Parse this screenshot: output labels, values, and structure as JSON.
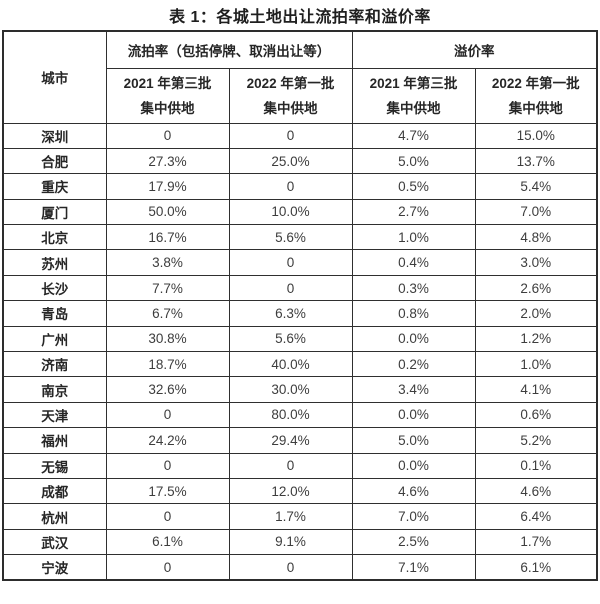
{
  "title": "表 1：各城土地出让流拍率和溢价率",
  "table": {
    "city_header": "城市",
    "group_headers": [
      "流拍率（包括停牌、取消出让等）",
      "溢价率"
    ],
    "sub_headers": [
      {
        "line1": "2021 年第三批",
        "line2": "集中供地"
      },
      {
        "line1": "2022 年第一批",
        "line2": "集中供地"
      },
      {
        "line1": "2021 年第三批",
        "line2": "集中供地"
      },
      {
        "line1": "2022 年第一批",
        "line2": "集中供地"
      }
    ],
    "rows": [
      {
        "city": "深圳",
        "values": [
          "0",
          "0",
          "4.7%",
          "15.0%"
        ]
      },
      {
        "city": "合肥",
        "values": [
          "27.3%",
          "25.0%",
          "5.0%",
          "13.7%"
        ]
      },
      {
        "city": "重庆",
        "values": [
          "17.9%",
          "0",
          "0.5%",
          "5.4%"
        ]
      },
      {
        "city": "厦门",
        "values": [
          "50.0%",
          "10.0%",
          "2.7%",
          "7.0%"
        ]
      },
      {
        "city": "北京",
        "values": [
          "16.7%",
          "5.6%",
          "1.0%",
          "4.8%"
        ]
      },
      {
        "city": "苏州",
        "values": [
          "3.8%",
          "0",
          "0.4%",
          "3.0%"
        ]
      },
      {
        "city": "长沙",
        "values": [
          "7.7%",
          "0",
          "0.3%",
          "2.6%"
        ]
      },
      {
        "city": "青岛",
        "values": [
          "6.7%",
          "6.3%",
          "0.8%",
          "2.0%"
        ]
      },
      {
        "city": "广州",
        "values": [
          "30.8%",
          "5.6%",
          "0.0%",
          "1.2%"
        ]
      },
      {
        "city": "济南",
        "values": [
          "18.7%",
          "40.0%",
          "0.2%",
          "1.0%"
        ]
      },
      {
        "city": "南京",
        "values": [
          "32.6%",
          "30.0%",
          "3.4%",
          "4.1%"
        ]
      },
      {
        "city": "天津",
        "values": [
          "0",
          "80.0%",
          "0.0%",
          "0.6%"
        ]
      },
      {
        "city": "福州",
        "values": [
          "24.2%",
          "29.4%",
          "5.0%",
          "5.2%"
        ]
      },
      {
        "city": "无锡",
        "values": [
          "0",
          "0",
          "0.0%",
          "0.1%"
        ]
      },
      {
        "city": "成都",
        "values": [
          "17.5%",
          "12.0%",
          "4.6%",
          "4.6%"
        ]
      },
      {
        "city": "杭州",
        "values": [
          "0",
          "1.7%",
          "7.0%",
          "6.4%"
        ]
      },
      {
        "city": "武汉",
        "values": [
          "6.1%",
          "9.1%",
          "2.5%",
          "1.7%"
        ]
      },
      {
        "city": "宁波",
        "values": [
          "0",
          "0",
          "7.1%",
          "6.1%"
        ]
      }
    ]
  },
  "colors": {
    "background": "#ffffff",
    "border": "#2f2f2f",
    "heading_text": "#262626",
    "body_text": "#3d3d3d"
  },
  "chart_data": {
    "type": "table",
    "title": "表 1：各城土地出让流拍率和溢价率",
    "columns": [
      "城市",
      "流拍率 2021 年第三批集中供地",
      "流拍率 2022 年第一批集中供地",
      "溢价率 2021 年第三批集中供地",
      "溢价率 2022 年第一批集中供地"
    ],
    "rows": [
      [
        "深圳",
        "0",
        "0",
        "4.7%",
        "15.0%"
      ],
      [
        "合肥",
        "27.3%",
        "25.0%",
        "5.0%",
        "13.7%"
      ],
      [
        "重庆",
        "17.9%",
        "0",
        "0.5%",
        "5.4%"
      ],
      [
        "厦门",
        "50.0%",
        "10.0%",
        "2.7%",
        "7.0%"
      ],
      [
        "北京",
        "16.7%",
        "5.6%",
        "1.0%",
        "4.8%"
      ],
      [
        "苏州",
        "3.8%",
        "0",
        "0.4%",
        "3.0%"
      ],
      [
        "长沙",
        "7.7%",
        "0",
        "0.3%",
        "2.6%"
      ],
      [
        "青岛",
        "6.7%",
        "6.3%",
        "0.8%",
        "2.0%"
      ],
      [
        "广州",
        "30.8%",
        "5.6%",
        "0.0%",
        "1.2%"
      ],
      [
        "济南",
        "18.7%",
        "40.0%",
        "0.2%",
        "1.0%"
      ],
      [
        "南京",
        "32.6%",
        "30.0%",
        "3.4%",
        "4.1%"
      ],
      [
        "天津",
        "0",
        "80.0%",
        "0.0%",
        "0.6%"
      ],
      [
        "福州",
        "24.2%",
        "29.4%",
        "5.0%",
        "5.2%"
      ],
      [
        "无锡",
        "0",
        "0",
        "0.0%",
        "0.1%"
      ],
      [
        "成都",
        "17.5%",
        "12.0%",
        "4.6%",
        "4.6%"
      ],
      [
        "杭州",
        "0",
        "1.7%",
        "7.0%",
        "6.4%"
      ],
      [
        "武汉",
        "6.1%",
        "9.1%",
        "2.5%",
        "1.7%"
      ],
      [
        "宁波",
        "0",
        "0",
        "7.1%",
        "6.1%"
      ]
    ]
  }
}
